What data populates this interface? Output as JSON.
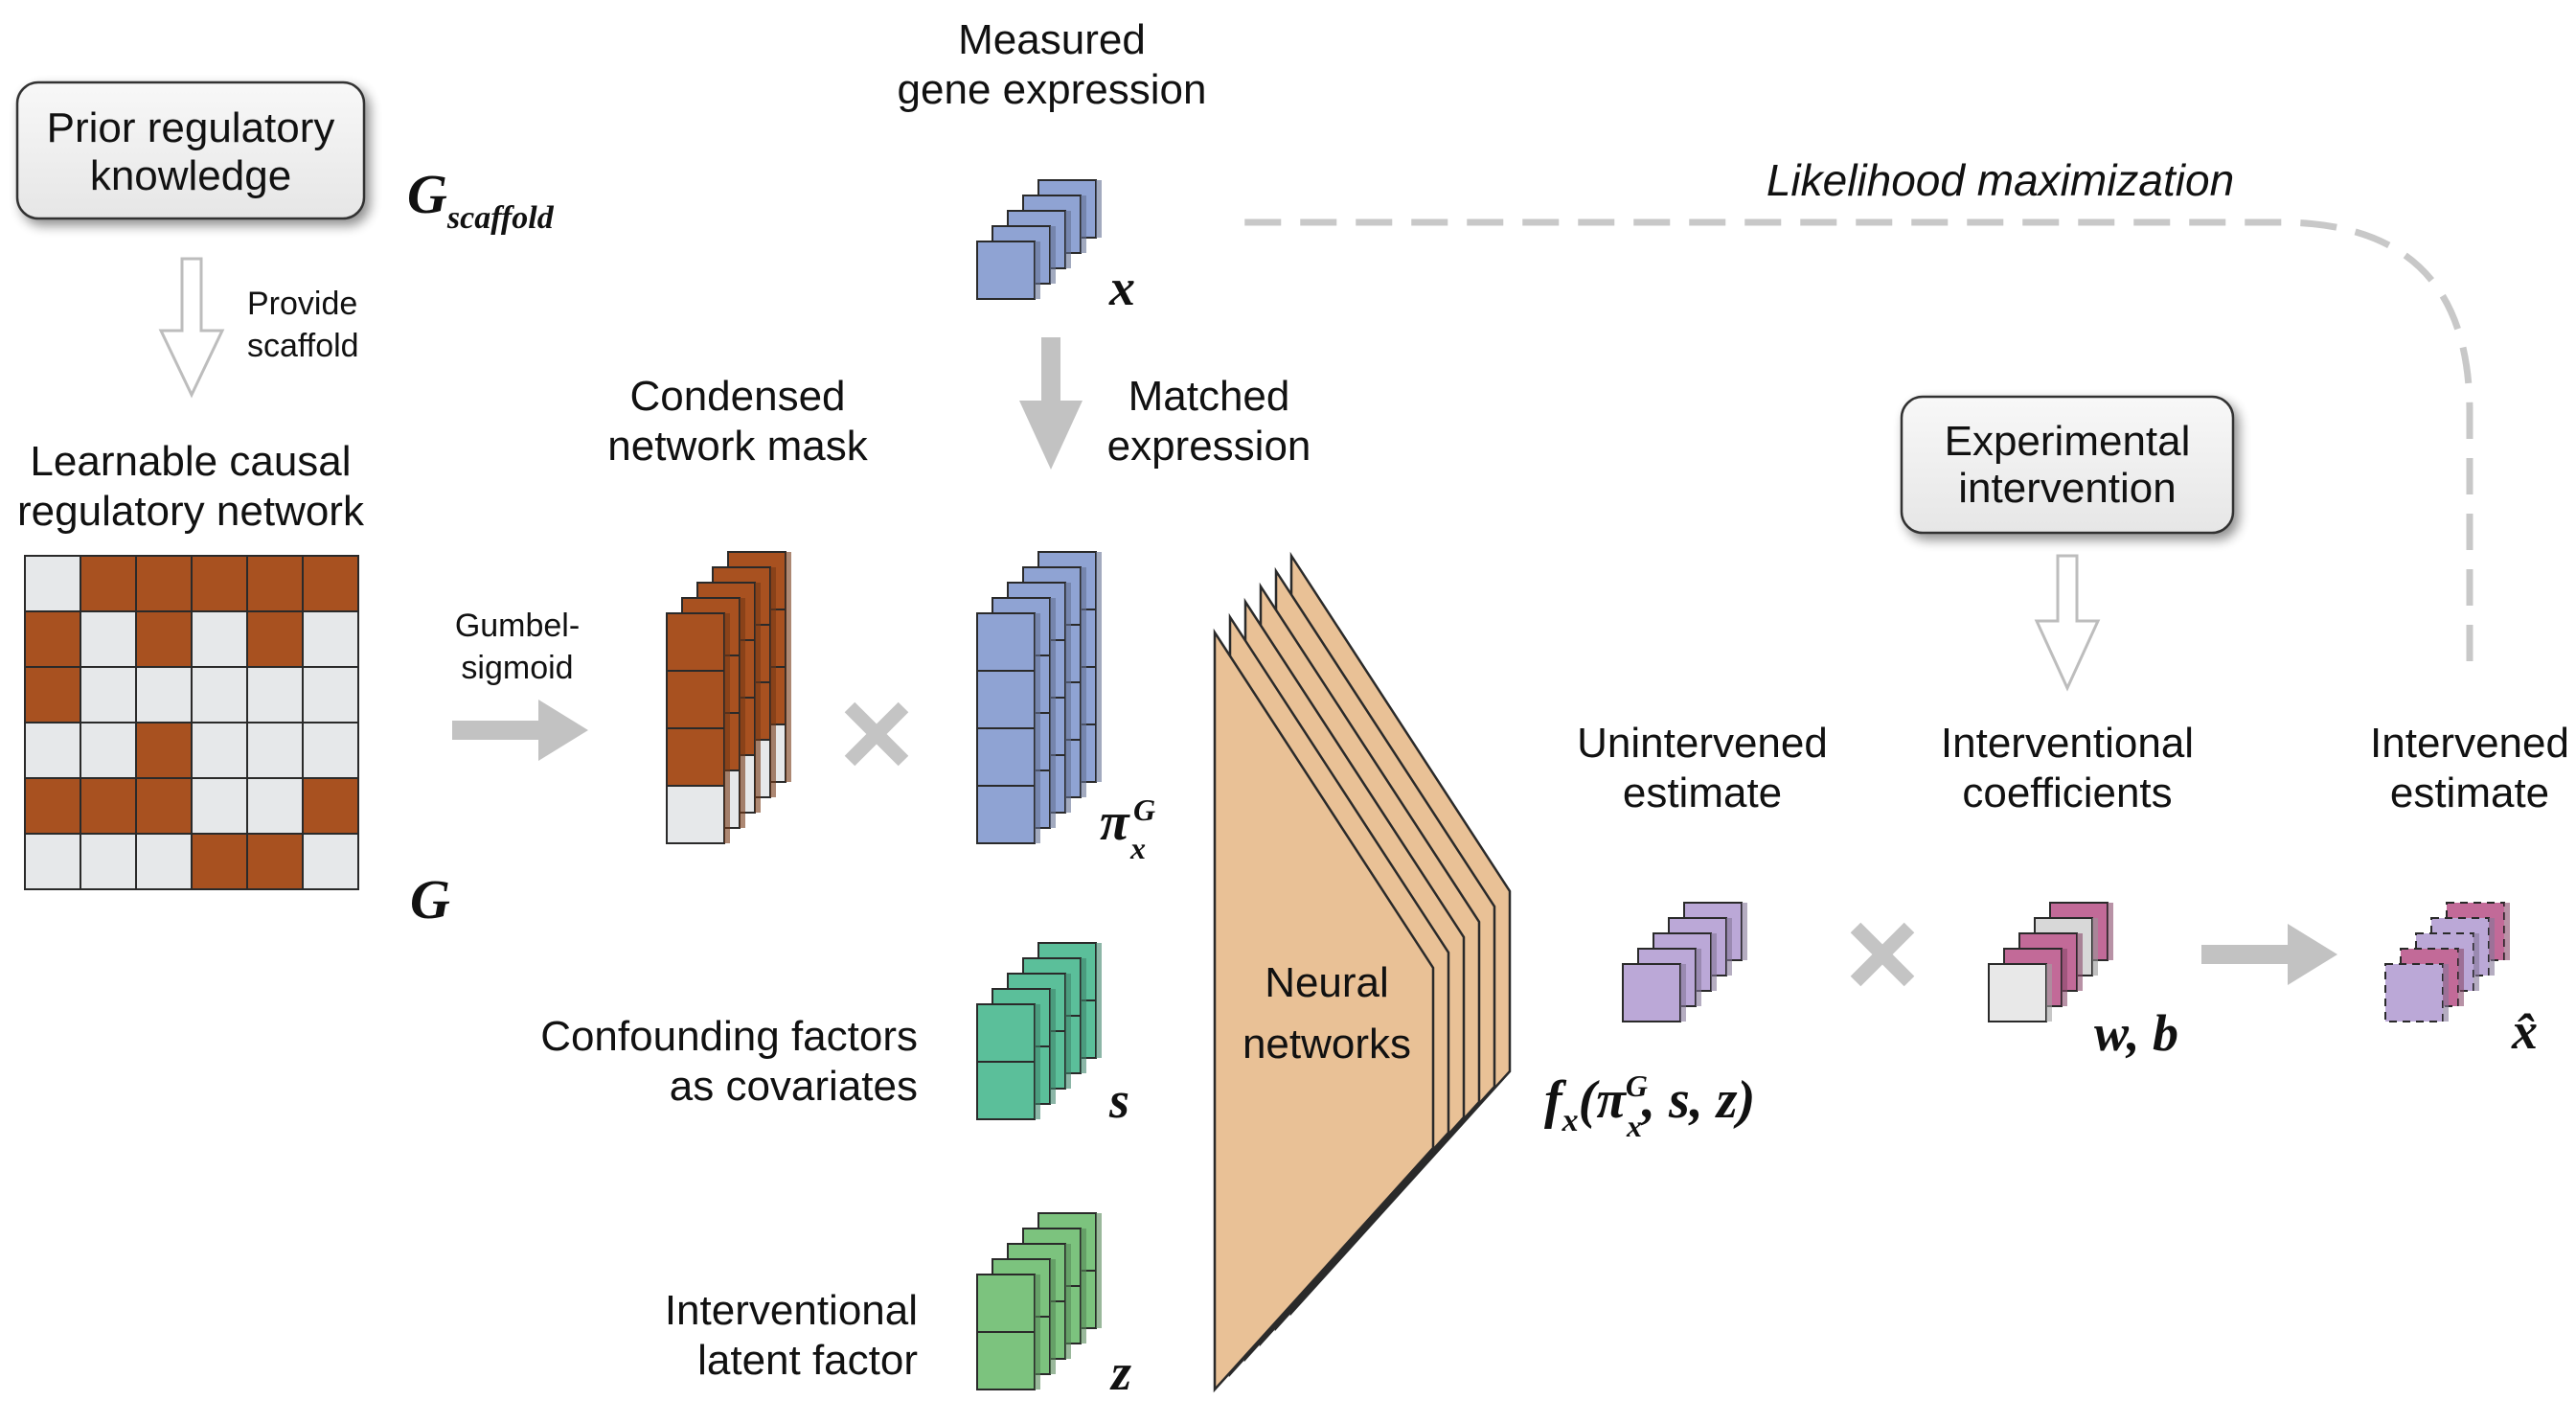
{
  "colors": {
    "network_on": "#a85120",
    "network_off": "#e6e8ea",
    "expression": "#8fa3d3",
    "confounder": "#5bbf9a",
    "latent": "#7cc37e",
    "neural": "#e9c196",
    "unintervened": "#bba8d7",
    "coefficient": "#c26a98",
    "arrow_gray": "#c2c2c2"
  },
  "prior": {
    "box_line1": "Prior regulatory",
    "box_line2": "knowledge",
    "symbol": "G",
    "symbol_sub": "scaffold"
  },
  "provide": {
    "line1": "Provide",
    "line2": "scaffold"
  },
  "network": {
    "title_line1": "Learnable causal",
    "title_line2": "regulatory network",
    "symbol": "G",
    "matrix": [
      [
        0,
        1,
        1,
        1,
        1,
        1
      ],
      [
        1,
        0,
        1,
        0,
        1,
        0
      ],
      [
        1,
        0,
        0,
        0,
        0,
        0
      ],
      [
        0,
        0,
        1,
        0,
        0,
        0
      ],
      [
        1,
        1,
        1,
        0,
        0,
        1
      ],
      [
        0,
        0,
        0,
        1,
        1,
        0
      ]
    ]
  },
  "gumbel": {
    "line1": "Gumbel-",
    "line2": "sigmoid"
  },
  "mask": {
    "title_line1": "Condensed",
    "title_line2": "network mask"
  },
  "measured": {
    "title_line1": "Measured",
    "title_line2": "gene expression",
    "symbol": "x"
  },
  "matched": {
    "title_line1": "Matched",
    "title_line2": "expression",
    "symbol": "π",
    "sup": "G",
    "sub": "x"
  },
  "confounding": {
    "line1": "Confounding factors",
    "line2": "as covariates",
    "symbol": "s"
  },
  "latent": {
    "line1": "Interventional",
    "line2": "latent factor",
    "symbol": "z"
  },
  "neural": {
    "line1": "Neural",
    "line2": "networks"
  },
  "unintervened": {
    "line1": "Unintervened",
    "line2": "estimate",
    "f": "f",
    "f_sub": "x",
    "open": "(",
    "pi": "π",
    "pi_sup": "G",
    "pi_sub": "x",
    "rest": ", s, z)"
  },
  "coefficients": {
    "line1": "Interventional",
    "line2": "coefficients",
    "symbol": "w, b"
  },
  "experimental": {
    "line1": "Experimental",
    "line2": "intervention"
  },
  "intervened": {
    "line1": "Intervened",
    "line2": "estimate",
    "symbol": "x̂"
  },
  "likelihood": {
    "label": "Likelihood maximization"
  },
  "operators": {
    "times": "×"
  }
}
